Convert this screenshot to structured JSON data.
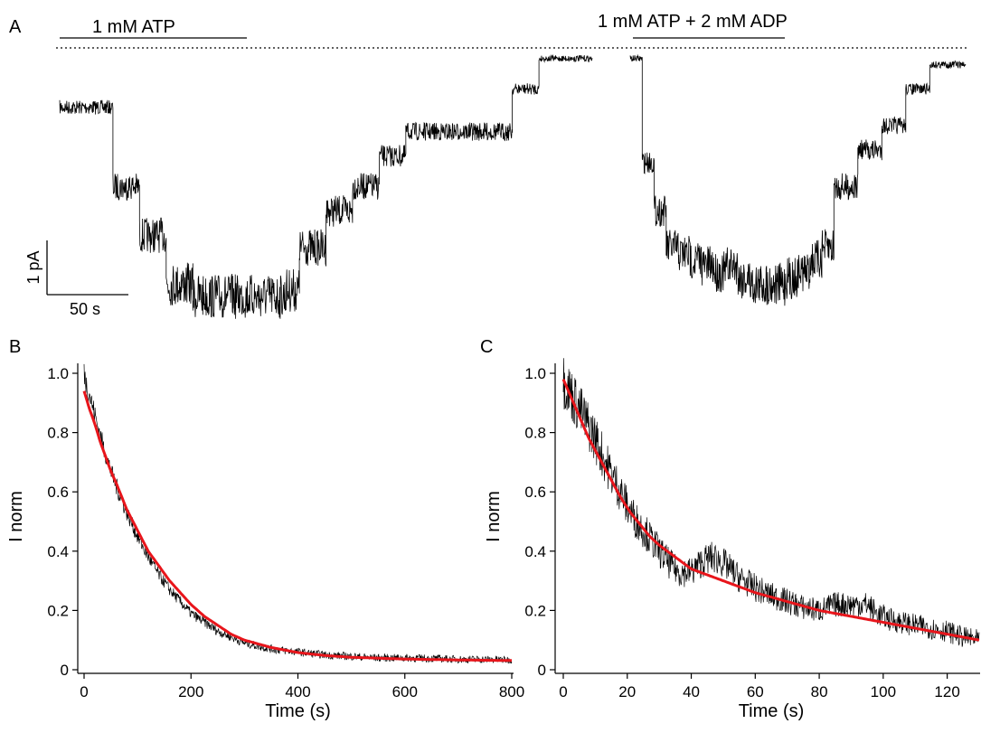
{
  "colors": {
    "trace": "#000000",
    "fit": "#e8151b",
    "axis": "#000000"
  },
  "panel_a": {
    "letter": "A",
    "bar1_label": "1 mM ATP",
    "bar2_label": "1 mM ATP + 2 mM ADP",
    "scale_y_label": "1 pA",
    "scale_x_label": "50 s"
  },
  "panel_b": {
    "letter": "B"
  },
  "panel_c": {
    "letter": "C"
  },
  "chart_data": [
    {
      "type": "line",
      "panel": "A",
      "xlabel": "",
      "ylabel": "",
      "scale_bars": {
        "current_pA": 1,
        "time_s": 50
      },
      "series": [
        {
          "values_pA": [
            -0.45,
            -0.45,
            -0.45,
            -0.45,
            -1.1,
            -1.1,
            -1.5,
            -1.5,
            -1.9,
            -1.9,
            -2.0,
            -2.0,
            -2.0,
            -2.0,
            -2.0,
            -2.0,
            -2.0,
            -1.95,
            -1.6,
            -1.6,
            -1.3,
            -1.3,
            -1.1,
            -1.1,
            -0.85,
            -0.85,
            -0.65,
            -0.65,
            -0.65,
            -0.65,
            -0.65,
            -0.65,
            -0.65,
            -0.65,
            -0.3,
            -0.3,
            -0.05,
            -0.05,
            -0.05,
            -0.05
          ]
        },
        {
          "values_pA": [
            -0.05,
            -0.9,
            -1.3,
            -1.6,
            -1.65,
            -1.7,
            -1.75,
            -1.8,
            -1.75,
            -1.85,
            -1.9,
            -1.9,
            -1.9,
            -1.85,
            -1.8,
            -1.7,
            -1.6,
            -1.1,
            -1.1,
            -0.8,
            -0.8,
            -0.6,
            -0.6,
            -0.3,
            -0.3,
            -0.1,
            -0.1,
            -0.1
          ]
        }
      ]
    },
    {
      "type": "line",
      "panel": "B",
      "xlabel": "Time (s)",
      "ylabel": "I norm",
      "xlim": [
        0,
        800
      ],
      "ylim": [
        0,
        1.0
      ],
      "xticks": [
        "0",
        "200",
        "400",
        "600",
        "800"
      ],
      "yticks": [
        "0",
        "0.2",
        "0.4",
        "0.6",
        "0.8",
        "1.0"
      ],
      "series": [
        {
          "role": "data",
          "x": [
            0,
            5,
            10,
            20,
            30,
            40,
            50,
            60,
            80,
            100,
            120,
            140,
            160,
            180,
            200,
            225,
            250,
            275,
            300,
            350,
            400,
            450,
            500,
            550,
            600,
            650,
            700,
            750,
            800
          ],
          "y": [
            1.0,
            0.96,
            0.93,
            0.86,
            0.79,
            0.73,
            0.67,
            0.62,
            0.53,
            0.45,
            0.38,
            0.32,
            0.27,
            0.23,
            0.19,
            0.16,
            0.13,
            0.11,
            0.09,
            0.07,
            0.06,
            0.05,
            0.045,
            0.04,
            0.04,
            0.038,
            0.035,
            0.035,
            0.033
          ]
        },
        {
          "role": "fit",
          "x": [
            0,
            10,
            20,
            30,
            40,
            50,
            60,
            80,
            100,
            120,
            140,
            160,
            180,
            200,
            225,
            250,
            275,
            300,
            350,
            400,
            450,
            500,
            600,
            700,
            800
          ],
          "y": [
            0.94,
            0.88,
            0.83,
            0.77,
            0.72,
            0.67,
            0.63,
            0.54,
            0.47,
            0.4,
            0.35,
            0.3,
            0.26,
            0.22,
            0.18,
            0.15,
            0.12,
            0.1,
            0.075,
            0.058,
            0.048,
            0.042,
            0.036,
            0.033,
            0.031
          ]
        }
      ]
    },
    {
      "type": "line",
      "panel": "C",
      "xlabel": "Time (s)",
      "ylabel": "I norm",
      "xlim": [
        0,
        130
      ],
      "ylim": [
        0,
        1.0
      ],
      "xticks": [
        "0",
        "20",
        "40",
        "60",
        "80",
        "100",
        "120"
      ],
      "yticks": [
        "0",
        "0.2",
        "0.4",
        "0.6",
        "0.8",
        "1.0"
      ],
      "series": [
        {
          "role": "data",
          "x": [
            0,
            2,
            4,
            6,
            8,
            10,
            12,
            15,
            18,
            20,
            23,
            26,
            30,
            33,
            36,
            40,
            43,
            46,
            49,
            52,
            55,
            58,
            61,
            65,
            70,
            75,
            80,
            85,
            90,
            95,
            98,
            102,
            106,
            110,
            115,
            120,
            125,
            130
          ],
          "y": [
            0.98,
            0.94,
            0.9,
            0.86,
            0.82,
            0.78,
            0.73,
            0.66,
            0.6,
            0.55,
            0.5,
            0.46,
            0.4,
            0.36,
            0.33,
            0.33,
            0.36,
            0.38,
            0.37,
            0.34,
            0.31,
            0.29,
            0.27,
            0.25,
            0.23,
            0.21,
            0.2,
            0.22,
            0.22,
            0.22,
            0.19,
            0.17,
            0.16,
            0.15,
            0.14,
            0.13,
            0.11,
            0.1
          ]
        },
        {
          "role": "fit",
          "x": [
            0,
            2,
            4,
            6,
            8,
            10,
            12,
            15,
            18,
            21,
            24,
            27,
            30,
            35,
            40,
            45,
            50,
            55,
            60,
            70,
            80,
            90,
            100,
            110,
            120,
            130
          ],
          "y": [
            0.98,
            0.93,
            0.88,
            0.83,
            0.78,
            0.74,
            0.7,
            0.64,
            0.58,
            0.53,
            0.49,
            0.45,
            0.42,
            0.38,
            0.34,
            0.32,
            0.3,
            0.28,
            0.26,
            0.23,
            0.2,
            0.18,
            0.16,
            0.14,
            0.12,
            0.1
          ]
        }
      ]
    }
  ]
}
